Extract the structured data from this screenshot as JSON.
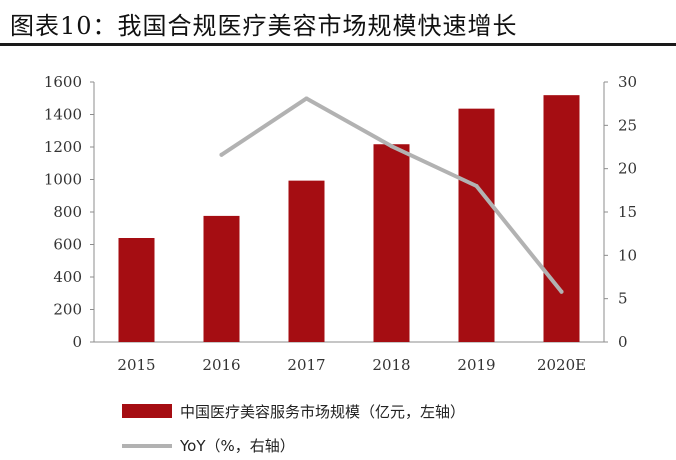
{
  "page": {
    "title": "图表10：我国合规医疗美容市场规模快速增长"
  },
  "chart_data": {
    "type": "bar",
    "categories": [
      "2015",
      "2016",
      "2017",
      "2018",
      "2019",
      "2020E"
    ],
    "series": [
      {
        "name": "中国医疗美容服务市场规模（亿元，左轴）",
        "type": "bar",
        "axis": "left",
        "color": "#a50d12",
        "values": [
          640,
          776,
          993,
          1217,
          1436,
          1519
        ]
      },
      {
        "name": "YoY（%，右轴）",
        "type": "line",
        "axis": "right",
        "color": "#b2b2b2",
        "values": [
          null,
          21.6,
          28.1,
          22.6,
          18.0,
          5.8
        ]
      }
    ],
    "y_left": {
      "min": 0,
      "max": 1600,
      "ticks": [
        "0",
        "200",
        "400",
        "600",
        "800",
        "1000",
        "1200",
        "1400",
        "1600"
      ]
    },
    "y_right": {
      "min": 0,
      "max": 30,
      "ticks": [
        "0",
        "5",
        "10",
        "15",
        "20",
        "25",
        "30"
      ]
    },
    "grid": false,
    "legend_position": "bottom-left"
  }
}
